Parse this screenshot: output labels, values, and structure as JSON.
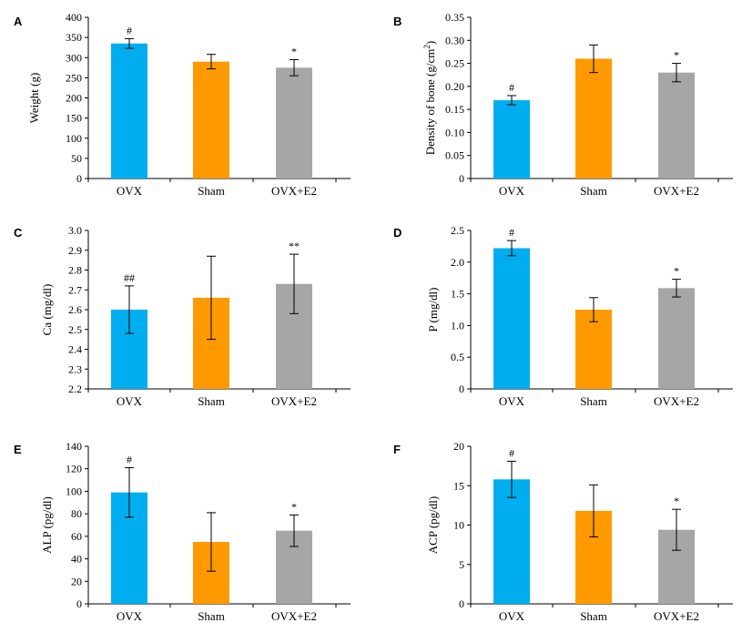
{
  "chart_data": [
    {
      "panel": "A",
      "type": "bar",
      "categories": [
        "OVX",
        "Sham",
        "OVX+E2"
      ],
      "values": [
        335,
        290,
        275
      ],
      "errors": [
        12,
        18,
        20
      ],
      "annotations": [
        "#",
        "",
        "*"
      ],
      "ylabel": "Weight (g)",
      "ylim": [
        0,
        400
      ],
      "ytick_step": 50,
      "ytick_labels": [
        "0",
        "50",
        "100",
        "150",
        "200",
        "250",
        "300",
        "350",
        "400"
      ],
      "colors": [
        "#00AEEF",
        "#FF9900",
        "#A6A6A6"
      ]
    },
    {
      "panel": "B",
      "type": "bar",
      "categories": [
        "OVX",
        "Sham",
        "OVX+E2"
      ],
      "values": [
        0.17,
        0.26,
        0.23
      ],
      "errors": [
        0.01,
        0.03,
        0.02
      ],
      "annotations": [
        "#",
        "",
        "*"
      ],
      "ylabel": "Density of bone (g/cm",
      "ylabel_sup": "2",
      "ylabel_end": ")",
      "ylim": [
        0,
        0.35
      ],
      "ytick_step": 0.05,
      "ytick_labels": [
        "0",
        "0.05",
        "0.10",
        "0.15",
        "0.20",
        "0.25",
        "0.30",
        "0.35"
      ],
      "colors": [
        "#00AEEF",
        "#FF9900",
        "#A6A6A6"
      ]
    },
    {
      "panel": "C",
      "type": "bar",
      "categories": [
        "OVX",
        "Sham",
        "OVX+E2"
      ],
      "values": [
        2.6,
        2.66,
        2.73
      ],
      "errors": [
        0.12,
        0.21,
        0.15
      ],
      "annotations": [
        "##",
        "",
        "**"
      ],
      "ylabel": "Ca (mg/dl)",
      "ylim": [
        2.2,
        3.0
      ],
      "ytick_step": 0.1,
      "ytick_labels": [
        "2.2",
        "2.3",
        "2.4",
        "2.5",
        "2.6",
        "2.7",
        "2.8",
        "2.9",
        "3.0"
      ],
      "colors": [
        "#00AEEF",
        "#FF9900",
        "#A6A6A6"
      ]
    },
    {
      "panel": "D",
      "type": "bar",
      "categories": [
        "OVX",
        "Sham",
        "OVX+E2"
      ],
      "values": [
        2.22,
        1.25,
        1.59
      ],
      "errors": [
        0.12,
        0.19,
        0.14
      ],
      "annotations": [
        "#",
        "",
        "*"
      ],
      "ylabel": "P (mg/dl)",
      "ylim": [
        0,
        2.5
      ],
      "ytick_step": 0.5,
      "ytick_labels": [
        "0",
        "0.5",
        "1.0",
        "1.5",
        "2.0",
        "2.5"
      ],
      "colors": [
        "#00AEEF",
        "#FF9900",
        "#A6A6A6"
      ]
    },
    {
      "panel": "E",
      "type": "bar",
      "categories": [
        "OVX",
        "Sham",
        "OVX+E2"
      ],
      "values": [
        99,
        55,
        65
      ],
      "errors": [
        22,
        26,
        14
      ],
      "annotations": [
        "#",
        "",
        "*"
      ],
      "ylabel": "ALP (pg/dl)",
      "ylim": [
        0,
        140
      ],
      "ytick_step": 20,
      "ytick_labels": [
        "0",
        "20",
        "40",
        "60",
        "80",
        "100",
        "120",
        "140"
      ],
      "colors": [
        "#00AEEF",
        "#FF9900",
        "#A6A6A6"
      ]
    },
    {
      "panel": "F",
      "type": "bar",
      "categories": [
        "OVX",
        "Sham",
        "OVX+E2"
      ],
      "values": [
        15.8,
        11.8,
        9.4
      ],
      "errors": [
        2.3,
        3.3,
        2.6
      ],
      "annotations": [
        "#",
        "",
        "*"
      ],
      "ylabel": "ACP (pg/dl)",
      "ylim": [
        0,
        20
      ],
      "ytick_step": 5,
      "ytick_labels": [
        "0",
        "5",
        "10",
        "15",
        "20"
      ],
      "colors": [
        "#00AEEF",
        "#FF9900",
        "#A6A6A6"
      ]
    }
  ]
}
